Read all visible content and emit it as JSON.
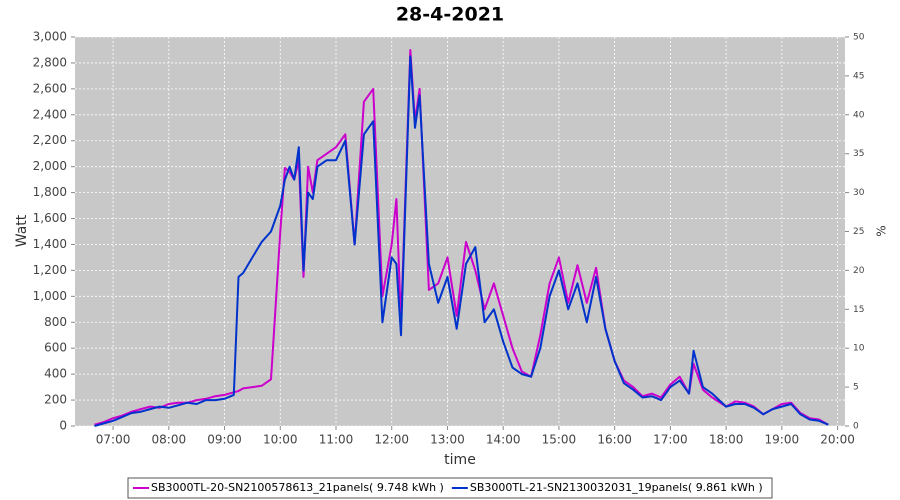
{
  "chart_data": {
    "type": "line",
    "title": "28-4-2021",
    "x_label": "time",
    "y_label": "Watt",
    "y2_label": "%",
    "x": [
      "06:40",
      "06:50",
      "07:00",
      "07:10",
      "07:20",
      "07:30",
      "07:40",
      "07:50",
      "08:00",
      "08:10",
      "08:20",
      "08:30",
      "08:40",
      "08:50",
      "09:00",
      "09:10",
      "09:15",
      "09:20",
      "09:30",
      "09:40",
      "09:50",
      "10:00",
      "10:05",
      "10:10",
      "10:15",
      "10:20",
      "10:25",
      "10:30",
      "10:35",
      "10:40",
      "10:50",
      "11:00",
      "11:10",
      "11:20",
      "11:30",
      "11:40",
      "11:50",
      "12:00",
      "12:05",
      "12:10",
      "12:20",
      "12:25",
      "12:30",
      "12:40",
      "12:50",
      "13:00",
      "13:10",
      "13:20",
      "13:30",
      "13:40",
      "13:50",
      "14:00",
      "14:10",
      "14:20",
      "14:30",
      "14:40",
      "14:50",
      "15:00",
      "15:10",
      "15:20",
      "15:30",
      "15:40",
      "15:50",
      "16:00",
      "16:10",
      "16:20",
      "16:30",
      "16:40",
      "16:50",
      "17:00",
      "17:10",
      "17:20",
      "17:25",
      "17:35",
      "17:45",
      "18:00",
      "18:10",
      "18:20",
      "18:30",
      "18:40",
      "18:50",
      "19:00",
      "19:10",
      "19:20",
      "19:30",
      "19:40",
      "19:50"
    ],
    "series": [
      {
        "name": "SB3000TL-20-SN2100578613_21panels( 9.748 kWh )",
        "color": "#cc00cc",
        "values": [
          10,
          30,
          60,
          80,
          110,
          130,
          150,
          140,
          170,
          180,
          180,
          200,
          210,
          230,
          240,
          260,
          270,
          290,
          300,
          310,
          360,
          1500,
          1990,
          1960,
          1900,
          2050,
          1150,
          2000,
          1800,
          2050,
          2100,
          2150,
          2250,
          1400,
          2500,
          2600,
          1000,
          1400,
          1750,
          800,
          2900,
          2350,
          2600,
          1050,
          1100,
          1300,
          850,
          1420,
          1200,
          900,
          1100,
          850,
          600,
          420,
          380,
          700,
          1100,
          1300,
          950,
          1240,
          950,
          1220,
          750,
          500,
          350,
          300,
          230,
          250,
          220,
          320,
          380,
          250,
          480,
          280,
          220,
          150,
          190,
          180,
          150,
          90,
          130,
          170,
          180,
          100,
          60,
          50,
          10
        ]
      },
      {
        "name": "SB3000TL-21-SN2130032031_19panels( 9.861 kWh )",
        "color": "#0033cc",
        "values": [
          0,
          20,
          40,
          70,
          100,
          110,
          130,
          150,
          140,
          160,
          180,
          170,
          200,
          200,
          210,
          240,
          1150,
          1180,
          1300,
          1420,
          1500,
          1700,
          1900,
          2000,
          1900,
          2150,
          1200,
          1800,
          1750,
          2000,
          2050,
          2050,
          2200,
          1400,
          2250,
          2350,
          800,
          1300,
          1250,
          700,
          2850,
          2300,
          2550,
          1250,
          950,
          1150,
          750,
          1250,
          1380,
          800,
          900,
          650,
          450,
          400,
          380,
          600,
          1000,
          1200,
          900,
          1100,
          800,
          1150,
          750,
          500,
          330,
          280,
          220,
          230,
          200,
          300,
          350,
          250,
          580,
          300,
          250,
          150,
          170,
          170,
          140,
          90,
          130,
          150,
          170,
          90,
          50,
          40,
          10
        ]
      }
    ],
    "xlim": [
      "06:19",
      "20:08"
    ],
    "xticks": [
      "07:00",
      "08:00",
      "09:00",
      "10:00",
      "11:00",
      "12:00",
      "13:00",
      "14:00",
      "15:00",
      "16:00",
      "17:00",
      "18:00",
      "19:00",
      "20:00"
    ],
    "ylim": [
      0,
      3000
    ],
    "yticks": [
      0,
      200,
      400,
      600,
      800,
      {
        "value": 1000,
        "label": "1,000"
      },
      {
        "value": 1200,
        "label": "1,200"
      },
      {
        "value": 1400,
        "label": "1,400"
      },
      {
        "value": 1600,
        "label": "1,600"
      },
      {
        "value": 1800,
        "label": "1,800"
      },
      {
        "value": 2000,
        "label": "2,000"
      },
      {
        "value": 2200,
        "label": "2,200"
      },
      {
        "value": 2400,
        "label": "2,400"
      },
      {
        "value": 2600,
        "label": "2,600"
      },
      {
        "value": 2800,
        "label": "2,800"
      },
      {
        "value": 3000,
        "label": "3,000"
      }
    ],
    "y2lim": [
      0,
      50
    ],
    "y2ticks": [
      0,
      5,
      10,
      15,
      20,
      25,
      30,
      35,
      40,
      45,
      50
    ],
    "grid": true
  }
}
